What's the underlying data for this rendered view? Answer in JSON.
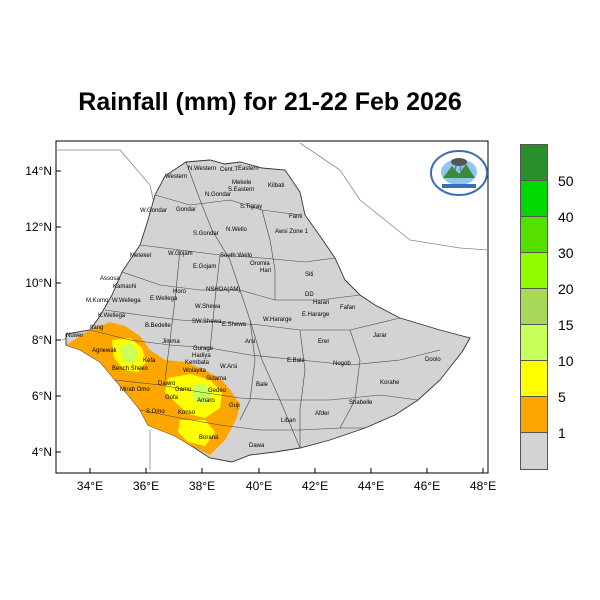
{
  "title": "Rainfall (mm) for 21-22 Feb 2026",
  "map": {
    "lat_ticks": [
      "4°N",
      "6°N",
      "8°N",
      "10°N",
      "12°N",
      "14°N"
    ],
    "lon_ticks": [
      "34°E",
      "36°E",
      "38°E",
      "40°E",
      "42°E",
      "44°E",
      "46°E",
      "48°E"
    ],
    "regions": [
      "N.Western",
      "Cent.T",
      "Eastern",
      "Western",
      "Mekele",
      "S.Eastern",
      "Kilbati",
      "S.Tigray",
      "W.Gondar",
      "Gondar",
      "N.Gondar",
      "Fanti",
      "S.Gondar",
      "N.Wello",
      "Awsi Zone 1",
      "Metekel",
      "Awi",
      "W.Gojam",
      "E.Gojam",
      "South Wello",
      "Oromia",
      "Hari",
      "Siti",
      "Assosa",
      "Kamashi",
      "Horo",
      "NSHOA(AM)",
      "DD",
      "Harari",
      "Fafan",
      "M.Komo",
      "W.Wellega",
      "E.Wellega",
      "W.Shewa",
      "W.Hararge",
      "E.Hararge",
      "K.Wellega",
      "B.Bedelle",
      "SW.Shewa",
      "E.Shewa",
      "Nuwer",
      "Itang",
      "Jimma",
      "Arsi",
      "Erer",
      "Jarar",
      "Agnewak",
      "Kefa",
      "Gurage",
      "Hadiya",
      "E.Bale",
      "Nogob",
      "Doolo",
      "Bench Sheko",
      "Kembata",
      "Wolayita",
      "W.Arsi",
      "Mirab Omo",
      "Dawro",
      "Gamo",
      "Sidama",
      "Bale",
      "Korahe",
      "Gofa",
      "Gedeo",
      "Shabelle",
      "S.Omo",
      "Konso",
      "Amaro",
      "Guji",
      "Liban",
      "Afder",
      "Borana",
      "Dawa"
    ]
  },
  "legend": {
    "labels": [
      "50",
      "40",
      "30",
      "20",
      "15",
      "10",
      "5",
      "1"
    ],
    "colors": [
      "#2a8f2a",
      "#00d800",
      "#55e000",
      "#8ffc00",
      "#a8d85a",
      "#c8ff5a",
      "#ffff00",
      "#ffa500",
      "#d3d3d3"
    ]
  },
  "colors": {
    "land": "#d3d3d3",
    "boundary": "#333333",
    "orange": "#ffa500",
    "yellow": "#ffff00",
    "light_green": "#c8ff5a"
  }
}
